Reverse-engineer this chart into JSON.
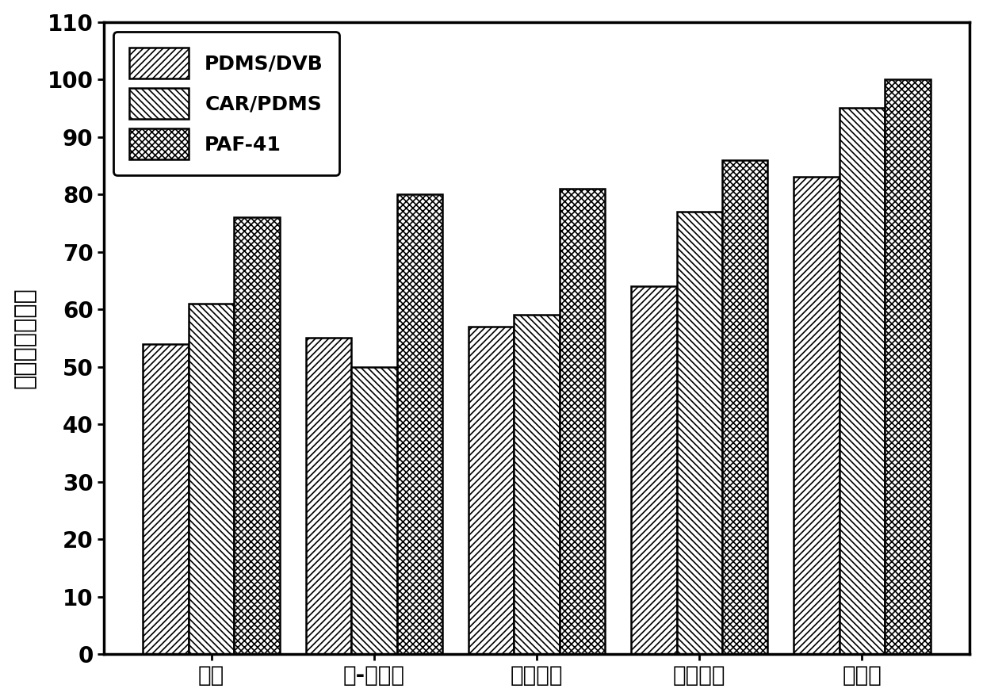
{
  "categories": [
    "乙苯",
    "对-二甲苯",
    "间二甲苯",
    "邻二甲苯",
    "苯乙烯"
  ],
  "series": [
    {
      "label": "PDMS/DVB",
      "values": [
        54,
        55,
        57,
        64,
        83
      ],
      "hatch": "////",
      "facecolor": "white",
      "edgecolor": "black"
    },
    {
      "label": "CAR/PDMS",
      "values": [
        61,
        50,
        59,
        77,
        95
      ],
      "hatch": "\\\\\\\\",
      "facecolor": "white",
      "edgecolor": "black"
    },
    {
      "label": "PAF-41",
      "values": [
        76,
        80,
        81,
        86,
        100
      ],
      "hatch": "xxxx",
      "facecolor": "white",
      "edgecolor": "black"
    }
  ],
  "ylabel": "归一化的萌取量",
  "ylim": [
    0,
    110
  ],
  "yticks": [
    0,
    10,
    20,
    30,
    40,
    50,
    60,
    70,
    80,
    90,
    100,
    110
  ],
  "bar_width": 0.28,
  "background_color": "white",
  "axis_fontsize": 22,
  "tick_fontsize": 20,
  "legend_fontsize": 18,
  "linewidth": 1.8,
  "hatch_linewidth": 1.2
}
